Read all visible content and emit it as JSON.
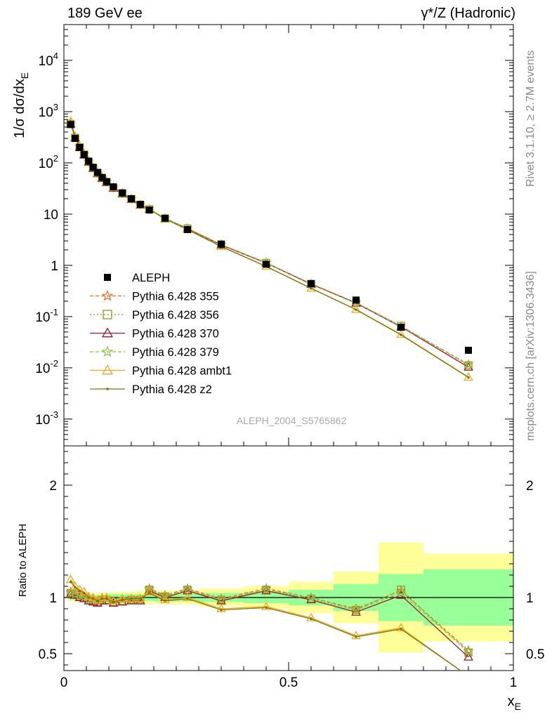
{
  "header": {
    "left": "189 GeV ee",
    "right": "γ*/Z (Hadronic)"
  },
  "side": {
    "rivet": "Rivet 3.1.10, ≥ 2.7M events",
    "mcplots": "mcplots.cern.ch [arXiv:1306.3436]"
  },
  "watermark": "ALEPH_2004_S5765862",
  "colors": {
    "data": "#000000",
    "p355": "#ef6e22",
    "p356": "#8a9b1f",
    "p370": "#a3162b",
    "p379": "#8bc34a",
    "ambt1": "#f2a81f",
    "z2": "#7a7512",
    "band_inner": "#99ff99",
    "band_outer": "#ffff99"
  },
  "chart_data": [
    {
      "type": "scatter",
      "title": "",
      "xlabel": "x_E",
      "ylabel": "1/σ dσ/dx_E",
      "yscale": "log",
      "xlim": [
        0,
        1
      ],
      "ylim": [
        0.0003,
        50000
      ],
      "legend_position": "middle-left",
      "x": [
        0.015,
        0.025,
        0.035,
        0.045,
        0.055,
        0.065,
        0.075,
        0.085,
        0.095,
        0.11,
        0.13,
        0.15,
        0.17,
        0.19,
        0.225,
        0.275,
        0.35,
        0.45,
        0.55,
        0.65,
        0.75,
        0.9
      ],
      "series": [
        {
          "name": "ALEPH",
          "key": "data",
          "values": [
            560,
            300,
            200,
            145,
            108,
            82,
            65,
            52,
            43,
            34,
            26,
            20,
            15.5,
            12,
            8.3,
            5.0,
            2.6,
            1.05,
            0.44,
            0.21,
            0.062,
            0.022
          ]
        },
        {
          "name": "Pythia 6.428 355",
          "key": "p355",
          "values": [
            580,
            312,
            203,
            146,
            106,
            80,
            63,
            51,
            42.5,
            33,
            25.5,
            19.8,
            15.3,
            12.6,
            8.3,
            5.3,
            2.55,
            1.13,
            0.44,
            0.188,
            0.065,
            0.0117
          ]
        },
        {
          "name": "Pythia 6.428 356",
          "key": "p356",
          "values": [
            575,
            310,
            202,
            145,
            105,
            79,
            62.5,
            50.5,
            42,
            32.5,
            25.2,
            19.6,
            15.2,
            12.5,
            8.2,
            5.25,
            2.52,
            1.12,
            0.435,
            0.186,
            0.066,
            0.0112
          ]
        },
        {
          "name": "Pythia 6.428 370",
          "key": "p370",
          "values": [
            570,
            308,
            200,
            143,
            104,
            78,
            62,
            50,
            41.5,
            32,
            25,
            19.5,
            15.1,
            12.4,
            8.15,
            5.2,
            2.5,
            1.11,
            0.43,
            0.183,
            0.063,
            0.0103
          ]
        },
        {
          "name": "Pythia 6.428 379",
          "key": "p379",
          "values": [
            578,
            311,
            203,
            146,
            106,
            80,
            63,
            51,
            42.5,
            33,
            25.4,
            19.7,
            15.25,
            12.55,
            8.25,
            5.28,
            2.54,
            1.125,
            0.438,
            0.187,
            0.064,
            0.0115
          ]
        },
        {
          "name": "Pythia 6.428 ambt1",
          "key": "ambt1",
          "values": [
            650,
            330,
            215,
            152,
            109,
            82,
            64,
            52,
            43,
            33,
            25.8,
            19.9,
            15.4,
            12.6,
            8.1,
            5.0,
            2.35,
            0.96,
            0.36,
            0.138,
            0.045,
            0.0066
          ]
        },
        {
          "name": "Pythia 6.428 z2",
          "key": "z2",
          "values": [
            640,
            327,
            213,
            151,
            108,
            81.5,
            63.5,
            51.5,
            42.5,
            32.8,
            25.6,
            19.8,
            15.3,
            12.5,
            8.05,
            4.98,
            2.33,
            0.95,
            0.355,
            0.136,
            0.044,
            0.0065
          ]
        }
      ]
    },
    {
      "type": "line",
      "title": "",
      "xlabel": "x_E",
      "ylabel": "Ratio to ALEPH",
      "xlim": [
        0,
        1
      ],
      "ylim": [
        0.35,
        2.35
      ],
      "bins": [
        [
          0.01,
          0.02
        ],
        [
          0.02,
          0.03
        ],
        [
          0.03,
          0.04
        ],
        [
          0.04,
          0.05
        ],
        [
          0.05,
          0.06
        ],
        [
          0.06,
          0.07
        ],
        [
          0.07,
          0.08
        ],
        [
          0.08,
          0.09
        ],
        [
          0.09,
          0.1
        ],
        [
          0.1,
          0.12
        ],
        [
          0.12,
          0.14
        ],
        [
          0.14,
          0.16
        ],
        [
          0.16,
          0.18
        ],
        [
          0.18,
          0.2
        ],
        [
          0.2,
          0.25
        ],
        [
          0.25,
          0.3
        ],
        [
          0.3,
          0.4
        ],
        [
          0.4,
          0.5
        ],
        [
          0.5,
          0.6
        ],
        [
          0.6,
          0.7
        ],
        [
          0.7,
          0.8
        ],
        [
          0.8,
          1.0
        ]
      ],
      "band_inner": [
        0.02,
        0.02,
        0.02,
        0.02,
        0.02,
        0.02,
        0.02,
        0.02,
        0.02,
        0.03,
        0.03,
        0.03,
        0.03,
        0.03,
        0.035,
        0.035,
        0.04,
        0.05,
        0.07,
        0.12,
        0.21,
        0.25
      ],
      "band_outer": [
        0.04,
        0.04,
        0.04,
        0.04,
        0.04,
        0.04,
        0.04,
        0.04,
        0.04,
        0.05,
        0.05,
        0.05,
        0.06,
        0.06,
        0.06,
        0.06,
        0.08,
        0.1,
        0.14,
        0.23,
        0.49,
        0.39
      ],
      "series": [
        {
          "name": "Pythia 6.428 355",
          "key": "p355",
          "values": [
            1.05,
            1.04,
            1.02,
            1.01,
            0.99,
            0.98,
            0.97,
            0.99,
            0.99,
            0.97,
            0.98,
            0.99,
            0.99,
            1.08,
            1.02,
            1.08,
            0.99,
            1.08,
            1.0,
            0.9,
            1.06,
            0.53
          ]
        },
        {
          "name": "Pythia 6.428 356",
          "key": "p356",
          "values": [
            1.04,
            1.03,
            1.01,
            1.0,
            0.98,
            0.97,
            0.96,
            0.98,
            0.98,
            0.96,
            0.97,
            0.98,
            0.98,
            1.07,
            1.01,
            1.07,
            0.98,
            1.07,
            0.99,
            0.89,
            1.07,
            0.51
          ]
        },
        {
          "name": "Pythia 6.428 370",
          "key": "p370",
          "values": [
            1.03,
            1.02,
            1.0,
            0.99,
            0.97,
            0.96,
            0.95,
            0.97,
            0.97,
            0.95,
            0.96,
            0.97,
            0.97,
            1.06,
            1.0,
            1.06,
            0.97,
            1.06,
            0.98,
            0.87,
            1.02,
            0.47
          ]
        },
        {
          "name": "Pythia 6.428 379",
          "key": "p379",
          "values": [
            1.04,
            1.03,
            1.02,
            1.0,
            0.98,
            0.98,
            0.97,
            0.98,
            0.99,
            0.97,
            0.98,
            0.98,
            0.98,
            1.07,
            1.01,
            1.07,
            0.98,
            1.07,
            1.0,
            0.89,
            1.04,
            0.52
          ]
        },
        {
          "name": "Pythia 6.428 ambt1",
          "key": "ambt1",
          "values": [
            1.16,
            1.1,
            1.07,
            1.05,
            1.01,
            1.0,
            0.98,
            1.0,
            1.0,
            0.97,
            0.99,
            0.99,
            0.99,
            1.05,
            0.98,
            1.0,
            0.9,
            0.92,
            0.82,
            0.66,
            0.73,
            0.3
          ]
        },
        {
          "name": "Pythia 6.428 z2",
          "key": "z2",
          "values": [
            1.14,
            1.09,
            1.06,
            1.04,
            1.0,
            0.99,
            0.97,
            0.99,
            0.99,
            0.96,
            0.98,
            0.99,
            0.99,
            1.04,
            0.97,
            0.99,
            0.89,
            0.91,
            0.81,
            0.65,
            0.72,
            0.3
          ]
        }
      ]
    }
  ],
  "axes": {
    "main_yticks": [
      {
        "mant": "10",
        "exp": "-3",
        "val": 0.001
      },
      {
        "mant": "10",
        "exp": "-2",
        "val": 0.01
      },
      {
        "mant": "10",
        "exp": "-1",
        "val": 0.1
      },
      {
        "mant": "1",
        "exp": "",
        "val": 1
      },
      {
        "mant": "10",
        "exp": "",
        "val": 10
      },
      {
        "mant": "10",
        "exp": "2",
        "val": 100
      },
      {
        "mant": "10",
        "exp": "3",
        "val": 1000
      },
      {
        "mant": "10",
        "exp": "4",
        "val": 10000
      }
    ],
    "ratio_yticks": [
      {
        "label": "0.5",
        "val": 0.5
      },
      {
        "label": "1",
        "val": 1
      },
      {
        "label": "2",
        "val": 2
      }
    ],
    "xticks": [
      {
        "label": "0",
        "val": 0
      },
      {
        "label": "0.5",
        "val": 0.5
      },
      {
        "label": "1",
        "val": 1
      }
    ]
  }
}
